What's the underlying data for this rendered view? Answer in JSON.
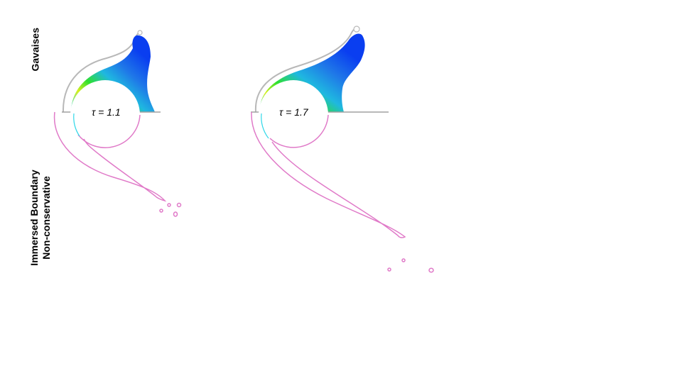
{
  "labels": {
    "top_row": "Gavaises",
    "bottom_row_line1": "Immersed Boundary",
    "bottom_row_line2": "Non-conservative"
  },
  "cases": [
    {
      "tau_label": "τ = 1.1"
    },
    {
      "tau_label": "τ = 1.7"
    }
  ],
  "colors": {
    "bubble_outline_ib": "#e07ac8",
    "bubble_outline_gavaises": "#b8b8b8",
    "wall": "#a0a0a0",
    "jet_core": "#0a3ef0",
    "jet_mid": "#1f78e8",
    "jet_green": "#2ee02e",
    "jet_yellow": "#d8f020",
    "jet_cyan": "#30d8e8"
  }
}
